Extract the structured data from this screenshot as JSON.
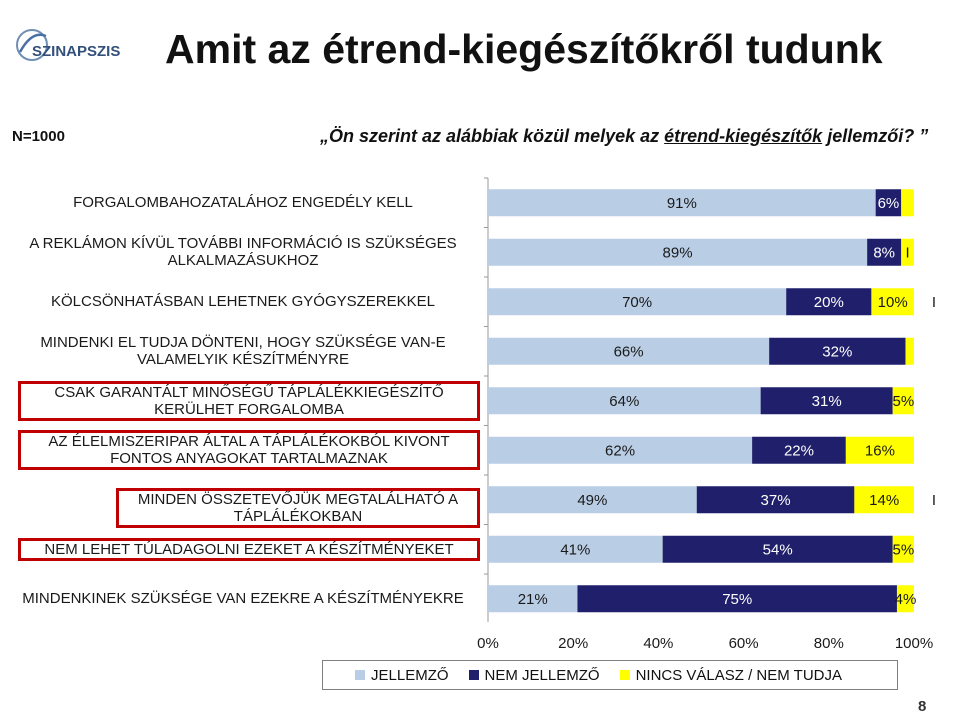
{
  "logo_text": "SZINAPSZIS",
  "title": "Amit az étrend-kiegészítőkről tudunk",
  "sample": "N=1000",
  "question_prefix": "„Ön szerint az alábbiak közül melyek az ",
  "question_underlined": "étrend-kiegészítők",
  "question_suffix": " jellemzői? ”",
  "page_number": "8",
  "colors": {
    "jellemzo": "#b9cde5",
    "nem_jellemzo": "#1f1f6b",
    "nincs_valasz": "#ffff00",
    "highlight_border": "#c00000",
    "label_text": "#1a1a1a"
  },
  "legend": [
    {
      "label": "JELLEMZŐ",
      "color": "#b9cde5"
    },
    {
      "label": "NEM JELLEMZŐ",
      "color": "#1f1f6b"
    },
    {
      "label": "NINCS VÁLASZ / NEM TUDJA",
      "color": "#ffff00"
    }
  ],
  "chart_data": {
    "type": "bar",
    "orientation": "horizontal",
    "stacked": true,
    "xlim": [
      0,
      100
    ],
    "ticks": [
      "0%",
      "20%",
      "40%",
      "60%",
      "80%",
      "100%"
    ],
    "categories": [
      "FORGALOMBAHOZATALÁHOZ ENGEDÉLY KELL",
      "A REKLÁMON KÍVÜL TOVÁBBI INFORMÁCIÓ IS SZÜKSÉGES ALKALMAZÁSUKHOZ",
      "KÖLCSÖNHATÁSBAN LEHETNEK GYÓGYSZEREKKEL",
      "MINDENKI EL TUDJA DÖNTENI, HOGY SZÜKSÉGE VAN-E VALAMELYIK KÉSZÍTMÉNYRE",
      "CSAK GARANTÁLT MINŐSÉGŰ TÁPLÁLÉKKIEGÉSZÍTŐ KERÜLHET FORGALOMBA",
      "AZ ÉLELMISZERIPAR ÁLTAL A TÁPLÁLÉKOKBÓL KIVONT FONTOS ANYAGOKAT TARTALMAZNAK",
      "MINDEN ÖSSZETEVŐJÜK MEGTALÁLHATÓ A TÁPLÁLÉKOKBAN",
      "NEM LEHET TÚLADAGOLNI EZEKET A KÉSZÍTMÉNYEKET",
      "MINDENKINEK SZÜKSÉGE VAN EZEKRE A KÉSZÍTMÉNYEKRE"
    ],
    "highlighted": [
      false,
      false,
      false,
      false,
      true,
      true,
      true,
      true,
      false
    ],
    "series": [
      {
        "name": "JELLEMZŐ",
        "values": [
          91,
          89,
          70,
          66,
          64,
          62,
          49,
          41,
          21
        ],
        "labels": [
          "91%",
          "89%",
          "70%",
          "66%",
          "64%",
          "62%",
          "49%",
          "41%",
          "21%"
        ]
      },
      {
        "name": "NEM JELLEMZŐ",
        "values": [
          6,
          8,
          20,
          32,
          31,
          22,
          37,
          54,
          75
        ],
        "labels": [
          "6%",
          "8%",
          "20%",
          "32%",
          "31%",
          "22%",
          "37%",
          "54%",
          "75%"
        ]
      },
      {
        "name": "NINCS VÁLASZ / NEM TUDJA",
        "values": [
          3,
          3,
          10,
          2,
          5,
          16,
          14,
          5,
          4
        ],
        "labels": [
          "",
          "I",
          "10%",
          "",
          "5%",
          "16%",
          "14%",
          "5%",
          "4%"
        ],
        "outside_labels": [
          "",
          "",
          "I",
          "",
          "",
          "",
          "I",
          "",
          ""
        ]
      }
    ]
  }
}
